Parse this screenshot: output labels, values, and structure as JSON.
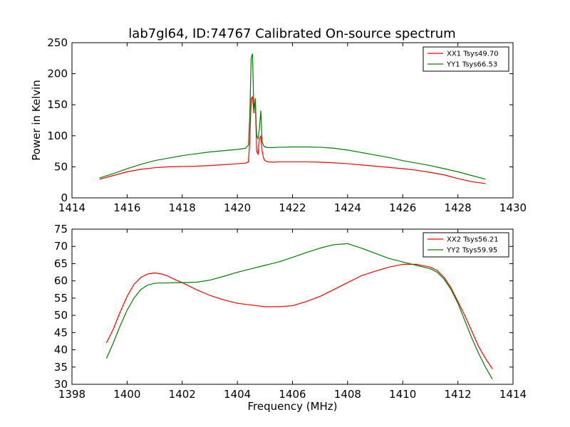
{
  "title": "lab7gl64, ID:74767 Calibrated On-source spectrum",
  "chart_data": [
    {
      "type": "line",
      "title": "lab7gl64, ID:74767 Calibrated On-source spectrum",
      "xlabel": "",
      "ylabel": "Power in Kelvin",
      "xlim": [
        1414,
        1430
      ],
      "ylim": [
        0,
        250
      ],
      "xticks": [
        1414,
        1416,
        1418,
        1420,
        1422,
        1424,
        1426,
        1428,
        1430
      ],
      "yticks": [
        0,
        50,
        100,
        150,
        200,
        250
      ],
      "grid": false,
      "legend_position": "top-right",
      "series": [
        {
          "name": "XX1 Tsys49.70",
          "color": "#ff0000",
          "x": [
            1415.0,
            1415.5,
            1416.0,
            1416.5,
            1417.0,
            1417.5,
            1418.0,
            1418.5,
            1419.0,
            1419.5,
            1420.0,
            1420.3,
            1420.4,
            1420.45,
            1420.5,
            1420.55,
            1420.6,
            1420.65,
            1420.7,
            1420.75,
            1420.8,
            1420.85,
            1420.9,
            1420.95,
            1421.0,
            1421.1,
            1421.3,
            1421.5,
            1422.0,
            1422.5,
            1423.0,
            1423.5,
            1424.0,
            1424.5,
            1425.0,
            1425.5,
            1426.0,
            1426.5,
            1427.0,
            1427.5,
            1428.0,
            1428.5,
            1429.0
          ],
          "values": [
            30,
            36,
            42,
            46,
            48.5,
            50,
            50.5,
            51,
            52,
            53.5,
            55,
            56,
            58,
            90,
            160,
            163,
            137,
            158,
            75,
            70,
            95,
            100,
            75,
            64,
            60,
            58,
            57.5,
            58,
            58,
            58,
            57.5,
            56.5,
            55,
            53,
            51,
            49,
            47,
            44.5,
            41,
            37,
            31,
            26,
            23
          ]
        },
        {
          "name": "YY1 Tsys66.53",
          "color": "#008000",
          "x": [
            1415.0,
            1415.5,
            1416.0,
            1416.5,
            1417.0,
            1417.5,
            1418.0,
            1418.5,
            1419.0,
            1419.5,
            1420.0,
            1420.3,
            1420.4,
            1420.45,
            1420.5,
            1420.55,
            1420.6,
            1420.65,
            1420.7,
            1420.75,
            1420.8,
            1420.85,
            1420.9,
            1420.95,
            1421.0,
            1421.1,
            1421.3,
            1421.5,
            1422.0,
            1422.5,
            1423.0,
            1423.5,
            1424.0,
            1424.5,
            1425.0,
            1425.5,
            1426.0,
            1426.5,
            1427.0,
            1427.5,
            1428.0,
            1428.5,
            1429.0
          ],
          "values": [
            32,
            39,
            47,
            54,
            60,
            64,
            68,
            71,
            74,
            76,
            78,
            80,
            85,
            130,
            225,
            232,
            140,
            160,
            100,
            95,
            112,
            140,
            90,
            84,
            82,
            81,
            81,
            81.5,
            82,
            82,
            81.5,
            80,
            77,
            73,
            69,
            65,
            60,
            56,
            52,
            47,
            42,
            36,
            30
          ]
        }
      ]
    },
    {
      "type": "line",
      "title": "",
      "xlabel": "Frequency (MHz)",
      "ylabel": "",
      "xlim": [
        1398,
        1414
      ],
      "ylim": [
        30,
        75
      ],
      "xticks": [
        1398,
        1400,
        1402,
        1404,
        1406,
        1408,
        1410,
        1412,
        1414
      ],
      "yticks": [
        30,
        35,
        40,
        45,
        50,
        55,
        60,
        65,
        70,
        75
      ],
      "grid": false,
      "legend_position": "top-right",
      "series": [
        {
          "name": "XX2 Tsys56.21",
          "color": "#ff0000",
          "x": [
            1399.25,
            1399.5,
            1399.75,
            1400.0,
            1400.25,
            1400.5,
            1400.75,
            1401.0,
            1401.25,
            1401.5,
            1401.75,
            1402.0,
            1402.5,
            1403.0,
            1403.5,
            1404.0,
            1404.5,
            1405.0,
            1405.5,
            1406.0,
            1406.5,
            1407.0,
            1407.5,
            1408.0,
            1408.5,
            1409.0,
            1409.5,
            1410.0,
            1410.5,
            1411.0,
            1411.25,
            1411.5,
            1411.75,
            1412.0,
            1412.25,
            1412.5,
            1412.75,
            1413.0,
            1413.25
          ],
          "values": [
            42,
            46,
            51,
            55.5,
            59,
            61,
            62,
            62.3,
            62,
            61.3,
            60.3,
            59.5,
            57.5,
            55.8,
            54.5,
            53.5,
            53,
            52.5,
            52.5,
            52.8,
            54,
            55.5,
            57.5,
            59.5,
            61.5,
            62.8,
            64,
            64.8,
            64.8,
            64,
            63,
            61,
            58,
            54,
            50,
            45.5,
            41,
            37.5,
            34.5
          ]
        },
        {
          "name": "YY2 Tsys59.95",
          "color": "#008000",
          "x": [
            1399.25,
            1399.5,
            1399.75,
            1400.0,
            1400.25,
            1400.5,
            1400.75,
            1401.0,
            1401.25,
            1401.5,
            1401.75,
            1402.0,
            1402.5,
            1403.0,
            1403.5,
            1404.0,
            1404.5,
            1405.0,
            1405.5,
            1406.0,
            1406.5,
            1407.0,
            1407.5,
            1408.0,
            1408.5,
            1409.0,
            1409.5,
            1410.0,
            1410.5,
            1411.0,
            1411.25,
            1411.5,
            1411.75,
            1412.0,
            1412.25,
            1412.5,
            1412.75,
            1413.0,
            1413.25
          ],
          "values": [
            37.5,
            42,
            47,
            51.5,
            55,
            57.5,
            58.8,
            59.3,
            59.4,
            59.4,
            59.5,
            59.5,
            59.6,
            60.2,
            61.3,
            62.5,
            63.5,
            64.5,
            65.5,
            66.8,
            68.2,
            69.5,
            70.5,
            70.8,
            69.5,
            68,
            66.5,
            65.5,
            64.5,
            63.5,
            62.5,
            60.5,
            57.5,
            53.5,
            48.5,
            43.5,
            39,
            35,
            31.5
          ]
        }
      ]
    }
  ]
}
